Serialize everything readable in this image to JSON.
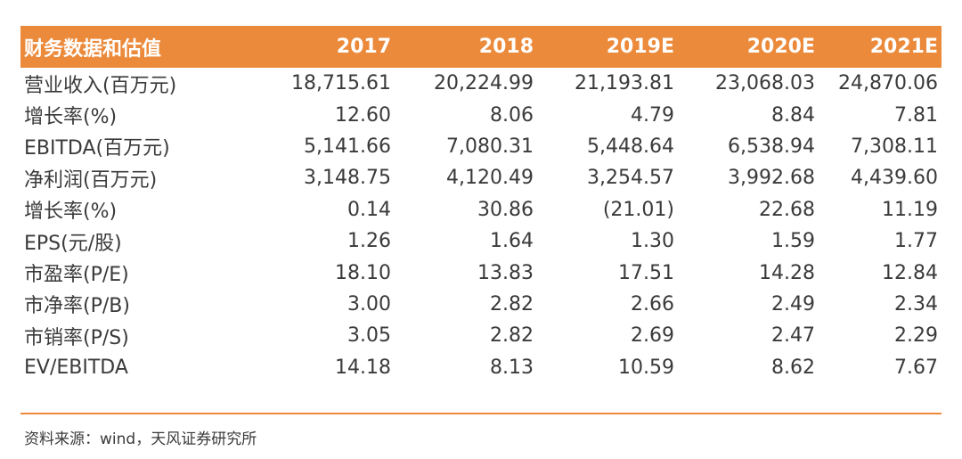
{
  "table": {
    "header": {
      "label": "财务数据和估值",
      "years": [
        "2017",
        "2018",
        "2019E",
        "2020E",
        "2021E"
      ]
    },
    "rows": [
      {
        "label": "营业收入(百万元)",
        "values": [
          "18,715.61",
          "20,224.99",
          "21,193.81",
          "23,068.03",
          "24,870.06"
        ]
      },
      {
        "label": "增长率(%)",
        "values": [
          "12.60",
          "8.06",
          "4.79",
          "8.84",
          "7.81"
        ]
      },
      {
        "label": "EBITDA(百万元)",
        "values": [
          "5,141.66",
          "7,080.31",
          "5,448.64",
          "6,538.94",
          "7,308.11"
        ]
      },
      {
        "label": "净利润(百万元)",
        "values": [
          "3,148.75",
          "4,120.49",
          "3,254.57",
          "3,992.68",
          "4,439.60"
        ]
      },
      {
        "label": "增长率(%)",
        "values": [
          "0.14",
          "30.86",
          "(21.01)",
          "22.68",
          "11.19"
        ]
      },
      {
        "label": "EPS(元/股)",
        "values": [
          "1.26",
          "1.64",
          "1.30",
          "1.59",
          "1.77"
        ]
      },
      {
        "label": "市盈率(P/E)",
        "values": [
          "18.10",
          "13.83",
          "17.51",
          "14.28",
          "12.84"
        ]
      },
      {
        "label": "市净率(P/B)",
        "values": [
          "3.00",
          "2.82",
          "2.66",
          "2.49",
          "2.34"
        ]
      },
      {
        "label": "市销率(P/S)",
        "values": [
          "3.05",
          "2.82",
          "2.69",
          "2.47",
          "2.29"
        ]
      },
      {
        "label": "EV/EBITDA",
        "values": [
          "14.18",
          "8.13",
          "10.59",
          "8.62",
          "7.67"
        ]
      }
    ]
  },
  "source": "资料来源：wind，天风证券研究所",
  "colors": {
    "header_bg": "#ec8a3b",
    "header_text": "#ffffff",
    "body_text": "#3a3a3a",
    "rule": "#ec8a3b"
  }
}
